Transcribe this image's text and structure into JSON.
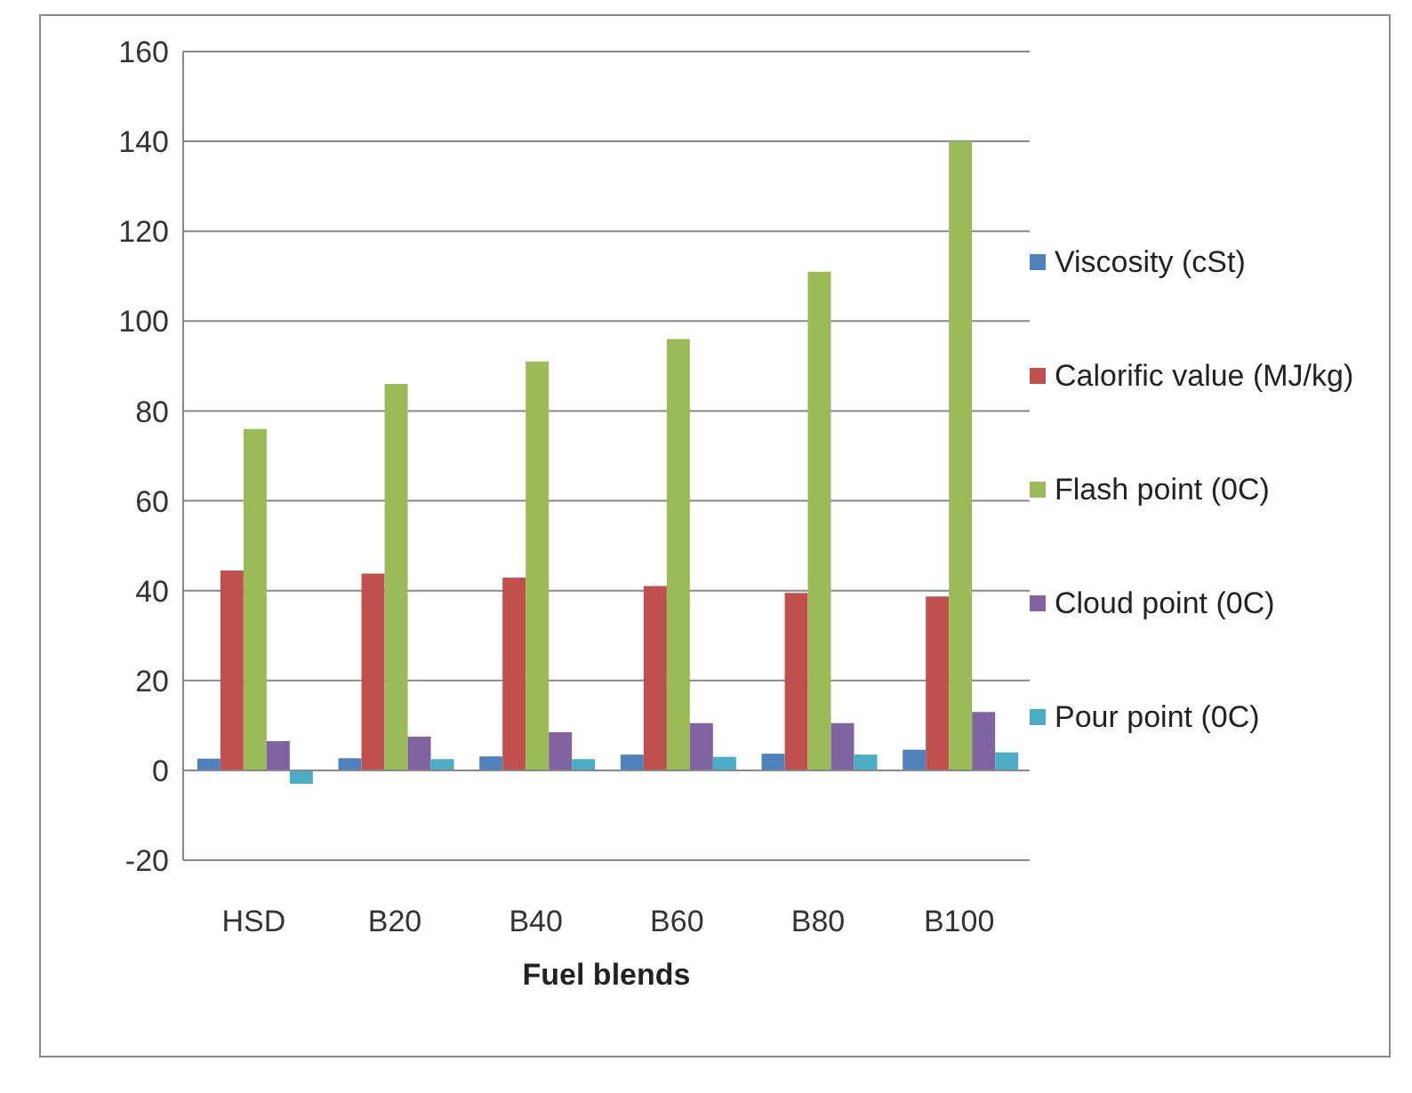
{
  "chart_data": {
    "type": "bar",
    "xlabel": "Fuel blends",
    "categories": [
      "HSD",
      "B20",
      "B40",
      "B60",
      "B80",
      "B100"
    ],
    "series": [
      {
        "name": "Viscosity (cSt)",
        "color": "#4f81bd",
        "values": [
          2.6,
          2.7,
          3.1,
          3.5,
          3.7,
          4.6
        ]
      },
      {
        "name": "Calorific value (MJ/kg)",
        "color": "#c0504d",
        "values": [
          44.5,
          43.8,
          42.9,
          41,
          39.5,
          38.7
        ]
      },
      {
        "name": "Flash point (0C)",
        "color": "#9bbb59",
        "values": [
          76,
          86,
          91,
          96,
          111,
          140
        ]
      },
      {
        "name": "Cloud point (0C)",
        "color": "#8064a2",
        "values": [
          6.5,
          7.5,
          8.5,
          10.5,
          10.5,
          13
        ]
      },
      {
        "name": "Pour point (0C)",
        "color": "#4bacc6",
        "values": [
          -3,
          2.5,
          2.5,
          3,
          3.5,
          4
        ]
      }
    ],
    "ylim": [
      -20,
      160
    ],
    "yticks": [
      -20,
      0,
      20,
      40,
      60,
      80,
      100,
      120,
      140,
      160
    ],
    "grid": "y",
    "legend": "right"
  }
}
